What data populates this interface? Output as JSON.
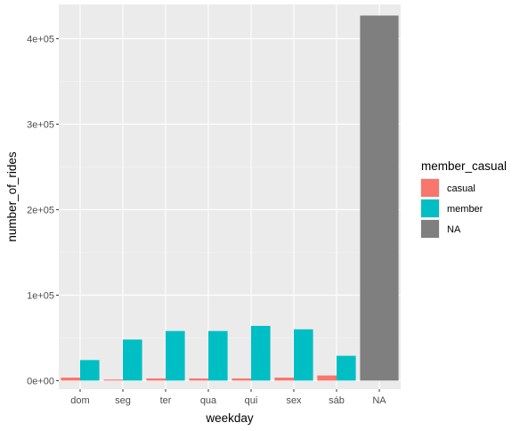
{
  "chart_data": {
    "type": "bar",
    "xlabel": "weekday",
    "ylabel": "number_of_rides",
    "categories": [
      "dom",
      "seg",
      "ter",
      "qua",
      "qui",
      "sex",
      "sáb",
      "NA"
    ],
    "ylim": [
      -10000,
      440000
    ],
    "yticks": [
      0,
      100000,
      200000,
      300000,
      400000
    ],
    "ytick_labels": [
      "0e+00",
      "1e+05",
      "2e+05",
      "3e+05",
      "4e+05"
    ],
    "grid": true,
    "legend": {
      "title": "member_casual",
      "position": "right",
      "entries": [
        {
          "label": "casual",
          "color": "#F8766D"
        },
        {
          "label": "member",
          "color": "#00BFC4"
        },
        {
          "label": "NA",
          "color": "#7F7F7F"
        }
      ]
    },
    "series": [
      {
        "name": "casual",
        "color": "#F8766D",
        "values": [
          3500,
          1200,
          2500,
          2500,
          2500,
          3500,
          6000,
          null
        ]
      },
      {
        "name": "member",
        "color": "#00BFC4",
        "values": [
          24000,
          48000,
          58000,
          58000,
          64000,
          60000,
          29000,
          null
        ]
      },
      {
        "name": "NA",
        "color": "#7F7F7F",
        "values": [
          null,
          null,
          null,
          null,
          null,
          null,
          null,
          427000
        ]
      }
    ]
  }
}
